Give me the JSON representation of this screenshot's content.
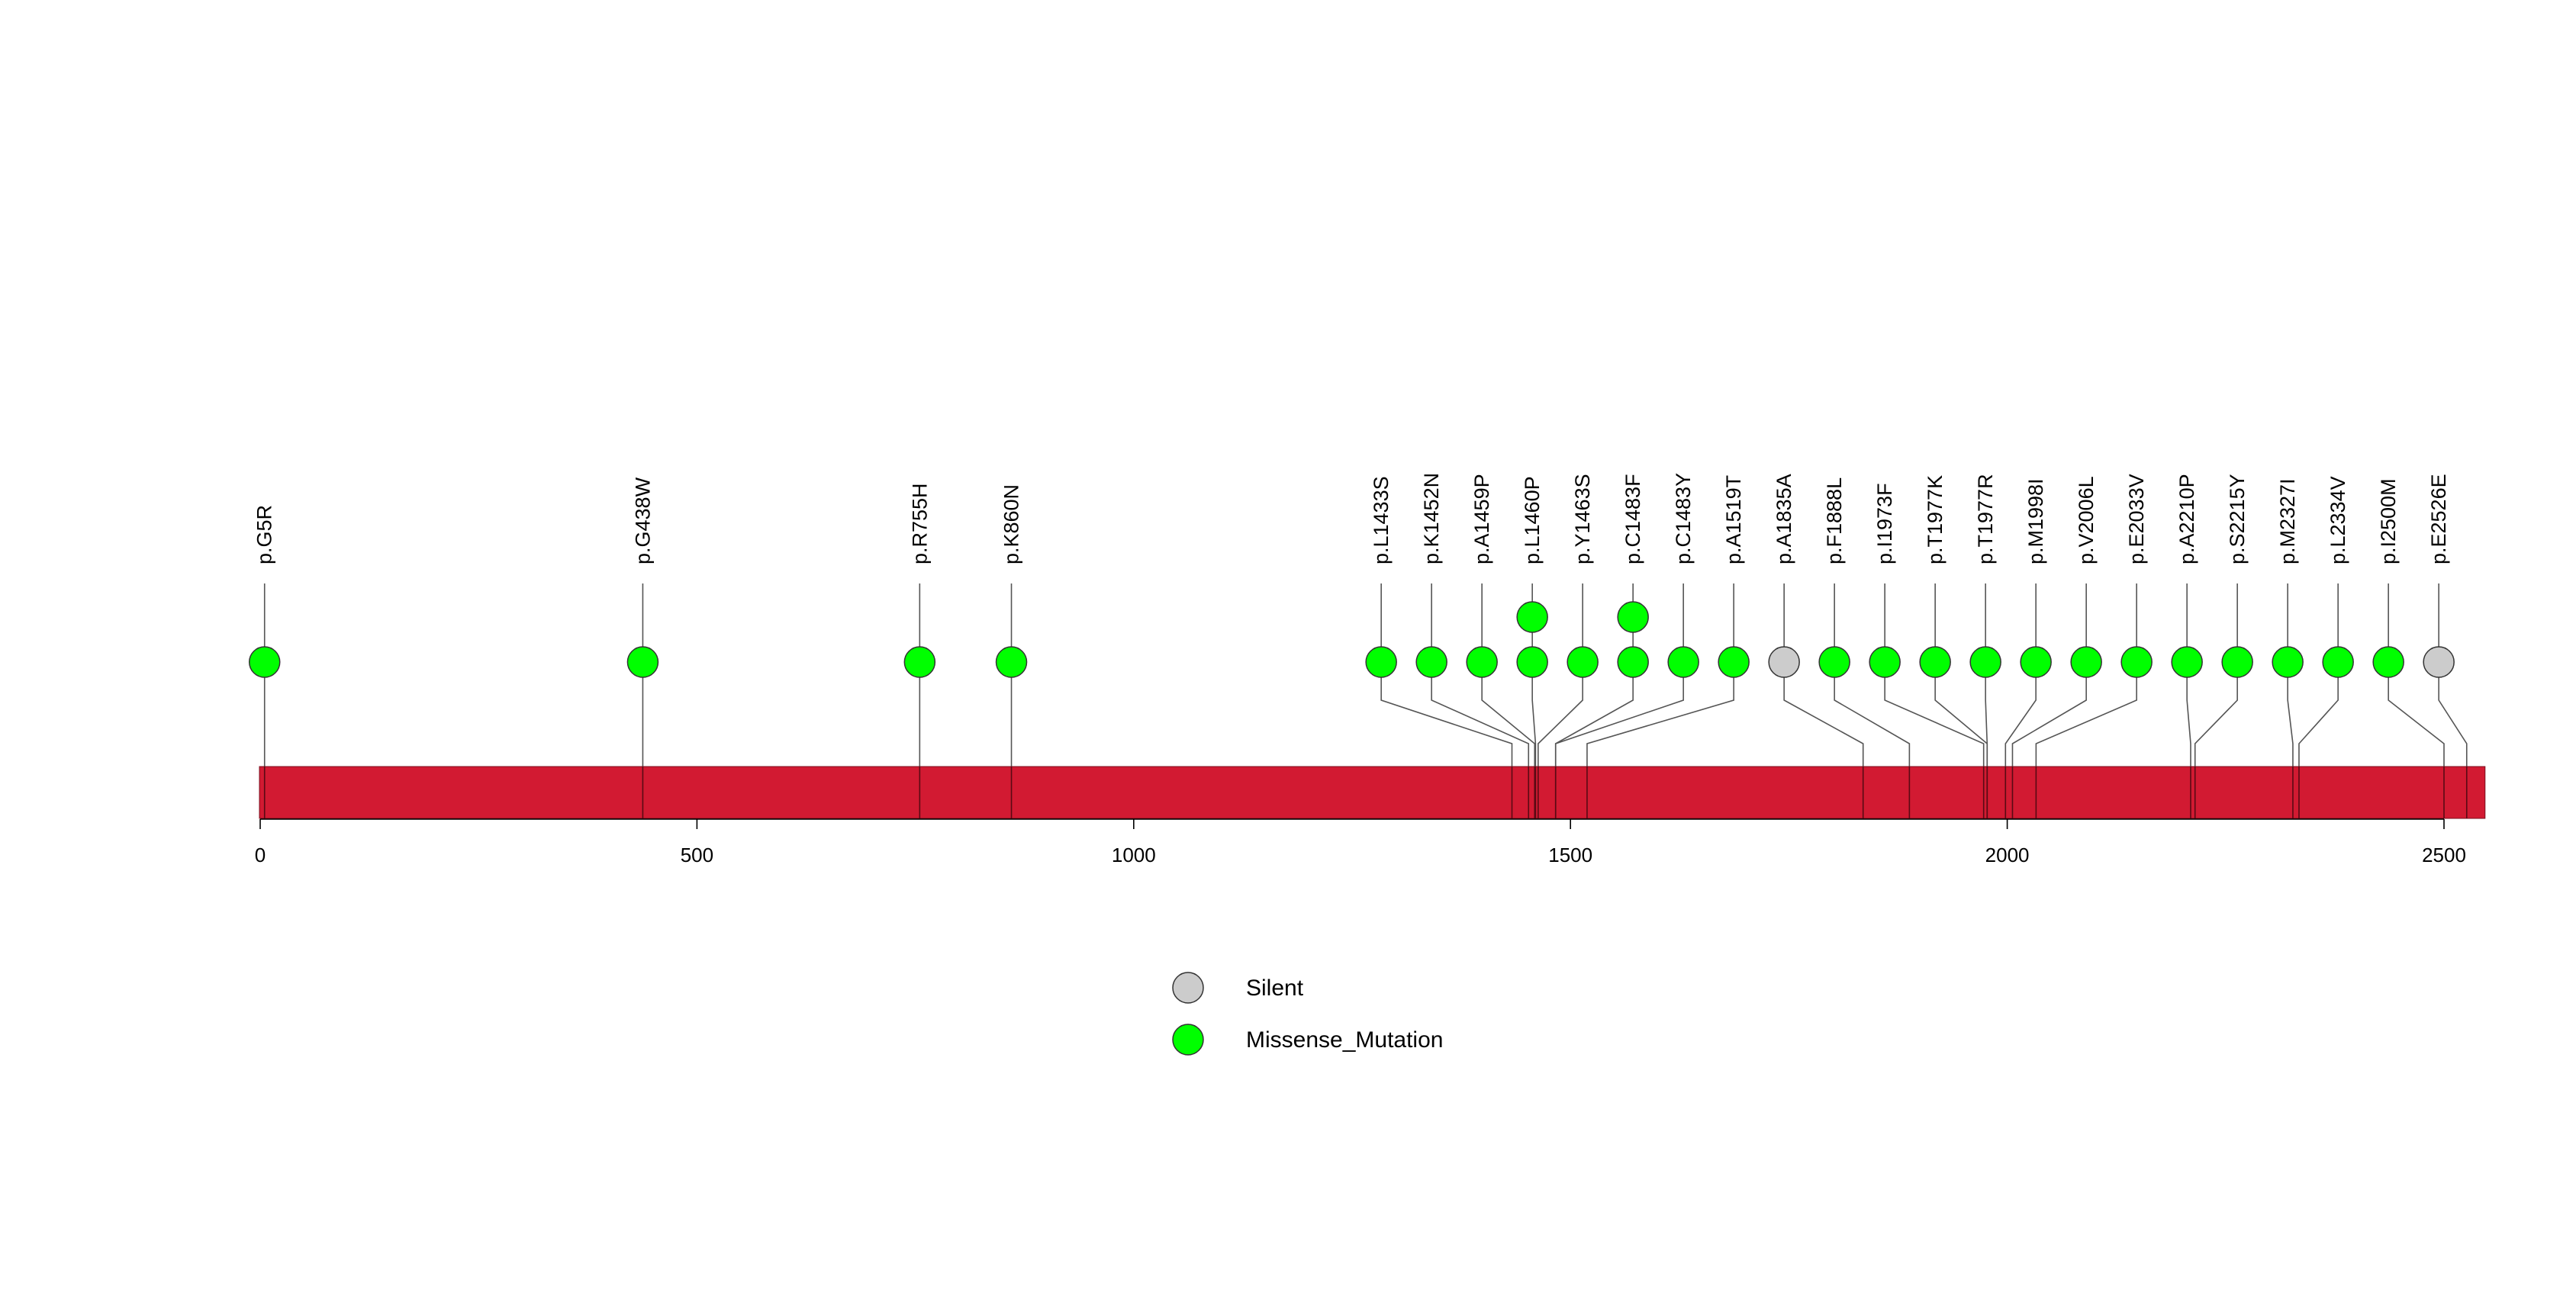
{
  "chart_data": {
    "type": "lollipop",
    "title": "",
    "xlabel": "",
    "ylabel": "",
    "protein_length": 2547,
    "xlim": [
      0,
      2547
    ],
    "x_ticks": [
      0,
      500,
      1000,
      1500,
      2000,
      2500
    ],
    "x_tick_labels": [
      "0",
      "500",
      "1000",
      "1500",
      "2000",
      "2500"
    ],
    "mutations": [
      {
        "label": "p.G5R",
        "position": 5,
        "type": "Missense_Mutation",
        "count": 1
      },
      {
        "label": "p.G438W",
        "position": 438,
        "type": "Missense_Mutation",
        "count": 1
      },
      {
        "label": "p.R755H",
        "position": 755,
        "type": "Missense_Mutation",
        "count": 1
      },
      {
        "label": "p.K860N",
        "position": 860,
        "type": "Missense_Mutation",
        "count": 1
      },
      {
        "label": "p.L1433S",
        "position": 1433,
        "type": "Missense_Mutation",
        "count": 1
      },
      {
        "label": "p.K1452N",
        "position": 1452,
        "type": "Missense_Mutation",
        "count": 1
      },
      {
        "label": "p.A1459P",
        "position": 1459,
        "type": "Missense_Mutation",
        "count": 1
      },
      {
        "label": "p.L1460P",
        "position": 1460,
        "type": "Missense_Mutation",
        "count": 2
      },
      {
        "label": "p.Y1463S",
        "position": 1463,
        "type": "Missense_Mutation",
        "count": 1
      },
      {
        "label": "p.C1483F",
        "position": 1483,
        "type": "Missense_Mutation",
        "count": 2
      },
      {
        "label": "p.C1483Y",
        "position": 1483,
        "type": "Missense_Mutation",
        "count": 1
      },
      {
        "label": "p.A1519T",
        "position": 1519,
        "type": "Missense_Mutation",
        "count": 1
      },
      {
        "label": "p.A1835A",
        "position": 1835,
        "type": "Silent",
        "count": 1
      },
      {
        "label": "p.F1888L",
        "position": 1888,
        "type": "Missense_Mutation",
        "count": 1
      },
      {
        "label": "p.I1973F",
        "position": 1973,
        "type": "Missense_Mutation",
        "count": 1
      },
      {
        "label": "p.T1977K",
        "position": 1977,
        "type": "Missense_Mutation",
        "count": 1
      },
      {
        "label": "p.T1977R",
        "position": 1977,
        "type": "Missense_Mutation",
        "count": 1
      },
      {
        "label": "p.M1998I",
        "position": 1998,
        "type": "Missense_Mutation",
        "count": 1
      },
      {
        "label": "p.V2006L",
        "position": 2006,
        "type": "Missense_Mutation",
        "count": 1
      },
      {
        "label": "p.E2033V",
        "position": 2033,
        "type": "Missense_Mutation",
        "count": 1
      },
      {
        "label": "p.A2210P",
        "position": 2210,
        "type": "Missense_Mutation",
        "count": 1
      },
      {
        "label": "p.S2215Y",
        "position": 2215,
        "type": "Missense_Mutation",
        "count": 1
      },
      {
        "label": "p.M2327I",
        "position": 2327,
        "type": "Missense_Mutation",
        "count": 1
      },
      {
        "label": "p.L2334V",
        "position": 2334,
        "type": "Missense_Mutation",
        "count": 1
      },
      {
        "label": "p.I2500M",
        "position": 2500,
        "type": "Missense_Mutation",
        "count": 1
      },
      {
        "label": "p.E2526E",
        "position": 2526,
        "type": "Silent",
        "count": 1
      }
    ],
    "legend": {
      "position": "bottom-center",
      "items": [
        {
          "label": "Silent",
          "color": "#cccccc"
        },
        {
          "label": "Missense_Mutation",
          "color": "#00ff00"
        }
      ]
    }
  },
  "colors": {
    "protein_bar": "#d21a32",
    "connector": "#555555",
    "stroke": "#333333",
    "Silent": "#cccccc",
    "Missense_Mutation": "#00ff00"
  }
}
